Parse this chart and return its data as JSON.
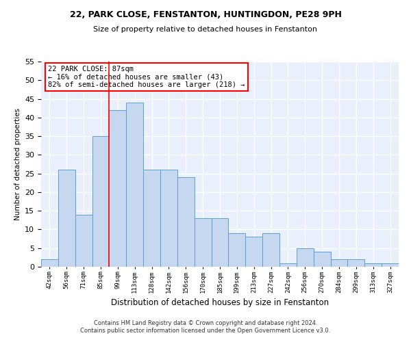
{
  "title1": "22, PARK CLOSE, FENSTANTON, HUNTINGDON, PE28 9PH",
  "title2": "Size of property relative to detached houses in Fenstanton",
  "xlabel": "Distribution of detached houses by size in Fenstanton",
  "ylabel": "Number of detached properties",
  "footer1": "Contains HM Land Registry data © Crown copyright and database right 2024.",
  "footer2": "Contains public sector information licensed under the Open Government Licence v3.0.",
  "bar_labels": [
    "42sqm",
    "56sqm",
    "71sqm",
    "85sqm",
    "99sqm",
    "113sqm",
    "128sqm",
    "142sqm",
    "156sqm",
    "170sqm",
    "185sqm",
    "199sqm",
    "213sqm",
    "227sqm",
    "242sqm",
    "256sqm",
    "270sqm",
    "284sqm",
    "299sqm",
    "313sqm",
    "327sqm"
  ],
  "bar_values": [
    2,
    26,
    14,
    35,
    42,
    44,
    26,
    26,
    24,
    13,
    13,
    9,
    8,
    9,
    1,
    5,
    4,
    2,
    2,
    1,
    1
  ],
  "bar_color": "#c5d8f0",
  "bar_edge_color": "#5a9fd4",
  "vline_x": 3.5,
  "vline_color": "red",
  "annotation_title": "22 PARK CLOSE: 87sqm",
  "annotation_line1": "← 16% of detached houses are smaller (43)",
  "annotation_line2": "82% of semi-detached houses are larger (218) →",
  "annotation_box_color": "white",
  "annotation_box_edge": "red",
  "ylim": [
    0,
    55
  ],
  "background_color": "#eaf0fb"
}
